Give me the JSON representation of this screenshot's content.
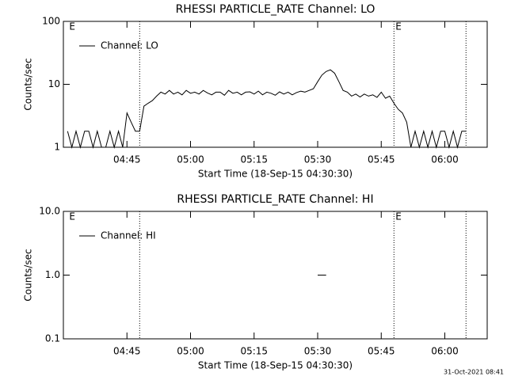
{
  "chart_data": [
    {
      "type": "line",
      "title": "RHESSI PARTICLE_RATE Channel: LO",
      "ylabel": "Counts/sec",
      "xlabel": "Start Time (18-Sep-15 04:30:30)",
      "log_y": true,
      "ylim": [
        1,
        100
      ],
      "yticks": [
        1,
        10,
        100
      ],
      "xlim": [
        "04:30",
        "06:10"
      ],
      "xticks": [
        "04:45",
        "05:00",
        "05:15",
        "05:30",
        "05:45",
        "06:00"
      ],
      "vlines": [
        "04:48",
        "05:48",
        "06:05"
      ],
      "annotations": [
        {
          "text": "E",
          "x": "04:31"
        },
        {
          "text": "E",
          "x": "05:48"
        }
      ],
      "legend": "upper left",
      "x": [
        "04:31",
        "04:32",
        "04:33",
        "04:34",
        "04:35",
        "04:36",
        "04:37",
        "04:38",
        "04:39",
        "04:40",
        "04:41",
        "04:42",
        "04:43",
        "04:44",
        "04:45",
        "04:46",
        "04:47",
        "04:48",
        "04:49",
        "04:50",
        "04:51",
        "04:52",
        "04:53",
        "04:54",
        "04:55",
        "04:56",
        "04:57",
        "04:58",
        "04:59",
        "05:00",
        "05:01",
        "05:02",
        "05:03",
        "05:04",
        "05:05",
        "05:06",
        "05:07",
        "05:08",
        "05:09",
        "05:10",
        "05:11",
        "05:12",
        "05:13",
        "05:14",
        "05:15",
        "05:16",
        "05:17",
        "05:18",
        "05:19",
        "05:20",
        "05:21",
        "05:22",
        "05:23",
        "05:24",
        "05:25",
        "05:26",
        "05:27",
        "05:28",
        "05:29",
        "05:30",
        "05:31",
        "05:32",
        "05:33",
        "05:34",
        "05:35",
        "05:36",
        "05:37",
        "05:38",
        "05:39",
        "05:40",
        "05:41",
        "05:42",
        "05:43",
        "05:44",
        "05:45",
        "05:46",
        "05:47",
        "05:48",
        "05:49",
        "05:50",
        "05:51",
        "05:52",
        "05:53",
        "05:54",
        "05:55",
        "05:56",
        "05:57",
        "05:58",
        "05:59",
        "06:00",
        "06:01",
        "06:02",
        "06:03",
        "06:04",
        "06:05"
      ],
      "series": [
        {
          "name": "Channel: LO",
          "color": "#000000",
          "values": [
            1.8,
            1,
            1.8,
            1,
            1.8,
            1.8,
            1,
            1.8,
            1,
            1,
            1.8,
            1,
            1.8,
            1,
            3.5,
            2.5,
            1.8,
            1.8,
            4.5,
            5,
            5.5,
            6.5,
            7.5,
            7,
            8,
            7,
            7.5,
            6.8,
            8,
            7.2,
            7.5,
            7,
            8,
            7.3,
            6.8,
            7.5,
            7.5,
            6.7,
            8,
            7.2,
            7.5,
            6.8,
            7.5,
            7.6,
            7,
            7.8,
            6.8,
            7.5,
            7.2,
            6.7,
            7.6,
            7,
            7.5,
            6.8,
            7.4,
            7.8,
            7.5,
            8,
            8.5,
            11,
            14,
            16,
            17,
            15,
            11,
            8,
            7.5,
            6.5,
            7,
            6.3,
            7,
            6.5,
            6.8,
            6.2,
            7.5,
            6,
            6.5,
            5,
            4,
            3.5,
            2.5,
            1,
            1.8,
            1,
            1.8,
            1,
            1.8,
            1,
            1.8,
            1.8,
            1,
            1.8,
            1,
            1.8,
            1.8
          ]
        }
      ]
    },
    {
      "type": "line",
      "title": "RHESSI PARTICLE_RATE Channel: HI",
      "ylabel": "Counts/sec",
      "xlabel": "Start Time (18-Sep-15 04:30:30)",
      "log_y": true,
      "ylim": [
        0.1,
        10
      ],
      "yticks": [
        0.1,
        {
          "value": 1,
          "label": "1.0"
        },
        {
          "value": 10,
          "label": "10.0"
        }
      ],
      "xlim": [
        "04:30",
        "06:10"
      ],
      "xticks": [
        "04:45",
        "05:00",
        "05:15",
        "05:30",
        "05:45",
        "06:00"
      ],
      "vlines": [
        "04:48",
        "05:48",
        "06:05"
      ],
      "annotations": [
        {
          "text": "E",
          "x": "04:31"
        },
        {
          "text": "E",
          "x": "05:48"
        }
      ],
      "legend": "upper left",
      "x": [
        "05:30",
        "05:32"
      ],
      "series": [
        {
          "name": "Channel: HI",
          "color": "#000000",
          "values": [
            1,
            1
          ]
        }
      ]
    }
  ],
  "footer": "31-Oct-2021 08:41"
}
